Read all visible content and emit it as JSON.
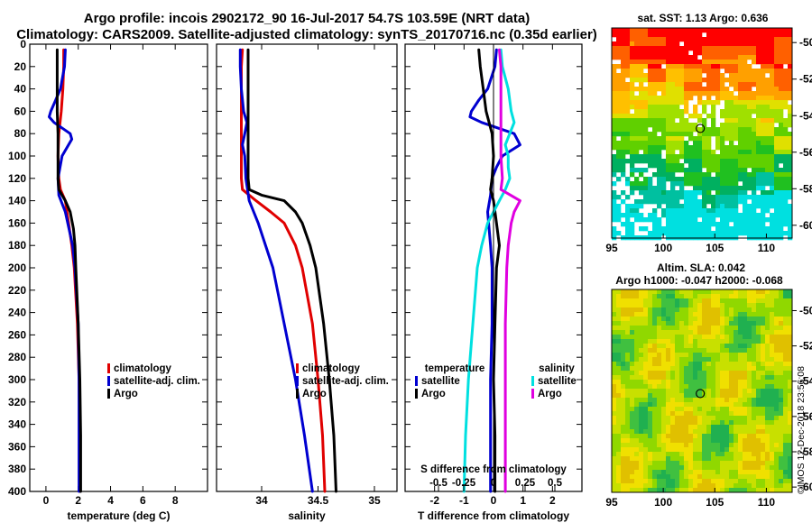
{
  "title": {
    "line1": "Argo profile: incois 2902172_90 16-Jul-2017 54.7S 103.59E (NRT data)",
    "line2": "Climatology: CARS2009. Satellite-adjusted climatology: synTS_20170716.nc (0.35d earlier)"
  },
  "colors": {
    "climatology": "#e00000",
    "satellite": "#0000d0",
    "argo": "#000000",
    "salinity_satellite": "#00e0e0",
    "salinity_clim": "#e000e0"
  },
  "depth_ticks": [
    0,
    20,
    40,
    60,
    80,
    100,
    120,
    140,
    160,
    180,
    200,
    220,
    240,
    260,
    280,
    300,
    320,
    340,
    360,
    380,
    400
  ],
  "chart_data": [
    {
      "id": "temperature",
      "type": "line",
      "xlabel": "temperature (deg C)",
      "ylabel": "depth",
      "xlim": [
        -1,
        10
      ],
      "ylim": [
        0,
        400
      ],
      "xticks": [
        0,
        2,
        4,
        6,
        8
      ],
      "xtick_labels": [
        "0",
        "2",
        "4",
        "6",
        "8"
      ],
      "legend": [
        "climatology",
        "satellite-adj. clim.",
        "Argo"
      ],
      "series": [
        {
          "name": "climatology",
          "color": "#e00000",
          "depth": [
            5,
            20,
            40,
            60,
            80,
            100,
            120,
            130,
            140,
            160,
            180,
            200,
            250,
            300,
            350,
            400
          ],
          "values": [
            1.1,
            1.1,
            1.05,
            0.95,
            0.8,
            0.75,
            0.8,
            0.9,
            1.2,
            1.4,
            1.6,
            1.75,
            1.95,
            2.05,
            2.1,
            2.1
          ]
        },
        {
          "name": "satellite-adj. clim.",
          "color": "#0000d0",
          "depth": [
            5,
            20,
            40,
            50,
            60,
            65,
            70,
            80,
            85,
            100,
            120,
            135,
            150,
            180,
            200,
            250,
            300,
            350,
            400
          ],
          "values": [
            1.2,
            1.15,
            0.9,
            0.6,
            0.3,
            0.2,
            0.5,
            1.5,
            1.6,
            1.0,
            0.75,
            0.8,
            1.2,
            1.65,
            1.8,
            2.0,
            2.05,
            2.05,
            2.05
          ]
        },
        {
          "name": "Argo",
          "color": "#000000",
          "depth": [
            5,
            20,
            40,
            60,
            80,
            100,
            120,
            130,
            140,
            150,
            165,
            180,
            200,
            250,
            300,
            350,
            400
          ],
          "values": [
            0.7,
            0.7,
            0.7,
            0.7,
            0.75,
            0.75,
            0.75,
            0.8,
            1.2,
            1.5,
            1.7,
            1.8,
            1.85,
            2.0,
            2.1,
            2.15,
            2.15
          ]
        }
      ]
    },
    {
      "id": "salinity",
      "type": "line",
      "xlabel": "salinity",
      "ylabel": "depth",
      "xlim": [
        33.6,
        35.2
      ],
      "ylim": [
        0,
        400
      ],
      "xticks": [
        34,
        34.5,
        35
      ],
      "xtick_labels": [
        "34",
        "34.5",
        "35"
      ],
      "legend": [
        "climatology",
        "satellite-adj. clim.",
        "Argo"
      ],
      "series": [
        {
          "name": "climatology",
          "color": "#e00000",
          "depth": [
            5,
            20,
            40,
            60,
            80,
            100,
            120,
            130,
            140,
            150,
            160,
            180,
            200,
            250,
            300,
            350,
            400
          ],
          "values": [
            33.83,
            33.82,
            33.82,
            33.82,
            33.82,
            33.82,
            33.82,
            33.83,
            33.95,
            34.08,
            34.2,
            34.3,
            34.36,
            34.45,
            34.5,
            34.54,
            34.56
          ]
        },
        {
          "name": "satellite-adj. clim.",
          "color": "#0000d0",
          "depth": [
            5,
            20,
            40,
            60,
            70,
            80,
            90,
            100,
            120,
            140,
            150,
            160,
            200,
            250,
            300,
            350,
            400
          ],
          "values": [
            33.81,
            33.81,
            33.82,
            33.84,
            33.87,
            33.85,
            33.83,
            33.85,
            33.86,
            33.89,
            33.93,
            33.97,
            34.1,
            34.2,
            34.3,
            34.38,
            34.45
          ]
        },
        {
          "name": "Argo",
          "color": "#000000",
          "depth": [
            5,
            20,
            40,
            60,
            80,
            100,
            120,
            130,
            135,
            140,
            150,
            160,
            180,
            200,
            250,
            300,
            350,
            400
          ],
          "values": [
            33.88,
            33.88,
            33.88,
            33.88,
            33.88,
            33.88,
            33.88,
            33.89,
            34.0,
            34.2,
            34.3,
            34.36,
            34.43,
            34.48,
            34.55,
            34.6,
            34.64,
            34.66
          ]
        }
      ]
    },
    {
      "id": "difference",
      "type": "line",
      "xlabel": "T difference from climatology",
      "secondary_xlabel": "S difference from climatology",
      "ylabel": "depth",
      "xlim": [
        -3,
        3
      ],
      "ylim": [
        0,
        400
      ],
      "xticks": [
        -2,
        -1,
        0,
        1,
        2
      ],
      "xtick_labels": [
        "-2",
        "-1",
        "0",
        "1",
        "2"
      ],
      "secondary_xtick_labels": [
        "-0.5",
        "-0.25",
        "0",
        "0.25",
        "0.5"
      ],
      "legend_temperature_title": "temperature",
      "legend_salinity_title": "salinity",
      "legend_temperature": [
        "satellite",
        "Argo"
      ],
      "legend_salinity": [
        "satellite",
        "Argo"
      ],
      "series": [
        {
          "name": "temperature satellite",
          "color": "#0000d0",
          "depth": [
            5,
            20,
            40,
            50,
            60,
            65,
            70,
            80,
            90,
            100,
            110,
            120,
            135,
            150,
            180,
            200,
            250,
            300,
            350,
            400
          ],
          "values": [
            0.1,
            0.05,
            -0.2,
            -0.5,
            -0.75,
            -0.8,
            -0.4,
            0.7,
            0.9,
            0.3,
            0.1,
            -0.05,
            -0.1,
            -0.2,
            -0.1,
            -0.05,
            -0.05,
            -0.1,
            -0.1,
            -0.1
          ]
        },
        {
          "name": "temperature Argo",
          "color": "#000000",
          "depth": [
            5,
            20,
            40,
            60,
            80,
            100,
            120,
            130,
            140,
            160,
            180,
            200,
            250,
            300,
            350,
            400
          ],
          "values": [
            -0.5,
            -0.45,
            -0.35,
            -0.25,
            -0.05,
            0.0,
            -0.05,
            -0.1,
            0.0,
            0.1,
            0.2,
            0.1,
            0.05,
            0.0,
            0.05,
            0.05
          ]
        },
        {
          "name": "salinity satellite",
          "color": "#00e0e0",
          "depth": [
            5,
            20,
            40,
            60,
            70,
            80,
            90,
            100,
            110,
            120,
            130,
            140,
            150,
            160,
            180,
            200,
            250,
            300,
            350,
            400
          ],
          "values": [
            0.25,
            0.3,
            0.5,
            0.6,
            0.7,
            0.55,
            0.4,
            0.5,
            0.5,
            0.55,
            0.4,
            0.2,
            0.0,
            -0.2,
            -0.4,
            -0.55,
            -0.7,
            -0.85,
            -0.95,
            -1.0
          ]
        },
        {
          "name": "salinity Argo",
          "color": "#e000e0",
          "depth": [
            5,
            20,
            40,
            60,
            80,
            100,
            120,
            130,
            140,
            150,
            160,
            180,
            200,
            250,
            300,
            350,
            400
          ],
          "values": [
            0.2,
            0.25,
            0.25,
            0.25,
            0.25,
            0.25,
            0.3,
            0.25,
            0.9,
            0.7,
            0.6,
            0.5,
            0.45,
            0.4,
            0.4,
            0.4,
            0.4
          ]
        }
      ]
    },
    {
      "id": "sst_map",
      "type": "heatmap",
      "title": "sat. SST: 1.13 Argo: 0.636",
      "xlim": [
        95,
        112.5
      ],
      "ylim": [
        -60.7,
        -49.2
      ],
      "xticks": [
        95,
        100,
        105,
        110
      ],
      "xtick_labels": [
        "95",
        "100",
        "105",
        "110"
      ],
      "yticks": [
        -50,
        -52,
        -54,
        -56,
        -58,
        -60
      ],
      "ytick_labels": [
        "-50",
        "-52",
        "-54",
        "-56",
        "-58",
        "-60"
      ],
      "marker": {
        "lon": 103.59,
        "lat": -54.7
      }
    },
    {
      "id": "sla_map",
      "type": "heatmap",
      "title": "Altim. SLA: 0.042",
      "subtitle": "Argo h1000: -0.047 h2000: -0.068",
      "xlim": [
        95,
        112.5
      ],
      "ylim": [
        -60.3,
        -48.8
      ],
      "xticks": [
        95,
        100,
        105,
        110
      ],
      "xtick_labels": [
        "95",
        "100",
        "105",
        "110"
      ],
      "yticks": [
        -50,
        -52,
        -54,
        -56,
        -58,
        -60
      ],
      "ytick_labels": [
        "-50",
        "-52",
        "-54",
        "-56",
        "-58",
        "-60"
      ],
      "marker": {
        "lon": 103.59,
        "lat": -54.7
      }
    }
  ],
  "credit": "©IMOS 12-Dec-2018 23:56:08"
}
